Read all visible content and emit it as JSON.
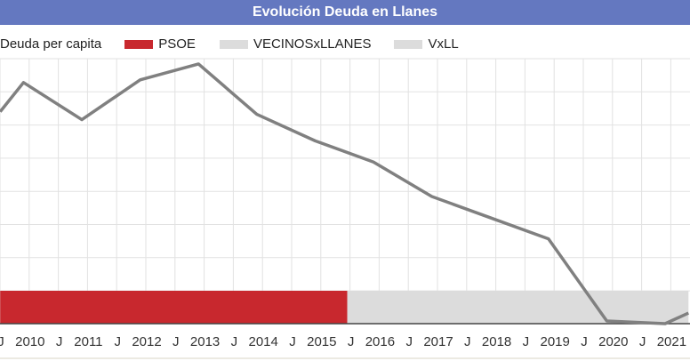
{
  "chart_data": {
    "type": "line",
    "title": "Evolución Deuda en Llanes",
    "series": [
      {
        "name": "Deuda per capita",
        "color": "#808080",
        "x": [
          2009.5,
          2009.9,
          2010.9,
          2011.9,
          2012.9,
          2013.9,
          2014.9,
          2015.9,
          2016.9,
          2017.9,
          2018.9,
          2019.9,
          2020.9,
          2021.3
        ],
        "y": [
          80,
          91,
          77,
          92,
          98,
          79,
          69,
          61,
          48,
          40,
          32,
          1,
          0,
          4
        ]
      }
    ],
    "periods": [
      {
        "name": "PSOE",
        "color": "#c8282e",
        "from": 2009.5,
        "to": 2015.45
      },
      {
        "name": "VECINOSxLLANES",
        "color": "#dcdcdc",
        "from": 2015.45,
        "to": 2021.3
      },
      {
        "name": "VxLL",
        "color": "#dcdcdc"
      }
    ],
    "legend": [
      "Deuda per capita",
      "PSOE",
      "VECINOSxLLANES",
      "VxLL"
    ],
    "x_tick_labels": [
      "J",
      "2010",
      "J",
      "2011",
      "J",
      "2012",
      "J",
      "2013",
      "J",
      "2014",
      "J",
      "2015",
      "J",
      "2016",
      "J",
      "2017",
      "J",
      "2018",
      "J",
      "2019",
      "J",
      "2020",
      "J",
      "2021"
    ],
    "xlim": [
      2009.5,
      2021.3
    ],
    "ylim": [
      0,
      100
    ],
    "grid": true,
    "legend_position": "top-left"
  }
}
